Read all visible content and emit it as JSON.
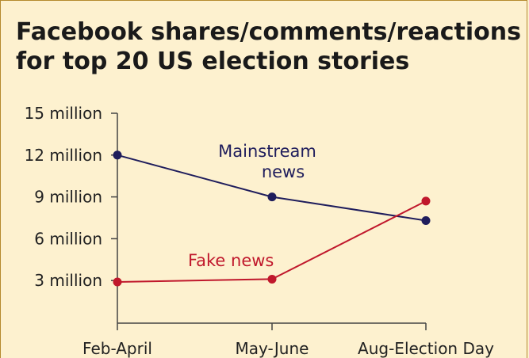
{
  "chart_data": {
    "type": "line",
    "title": "Facebook shares/comments/reactions for top 20 US election stories",
    "xlabel": "",
    "ylabel": "",
    "categories": [
      "Feb-April",
      "May-June",
      "Aug-Election Day"
    ],
    "y_ticks": [
      "3 million",
      "6 million",
      "9 million",
      "12 million",
      "15 million"
    ],
    "ylim": [
      0,
      15000000
    ],
    "series": [
      {
        "name": "Mainstream news",
        "name_lines": [
          "Mainstream",
          "news"
        ],
        "color": "#1f1d5c",
        "values": [
          12000000,
          9000000,
          7300000
        ]
      },
      {
        "name": "Fake news",
        "name_lines": [
          "Fake news"
        ],
        "color": "#c0182c",
        "values": [
          2900000,
          3100000,
          8700000
        ]
      }
    ]
  }
}
